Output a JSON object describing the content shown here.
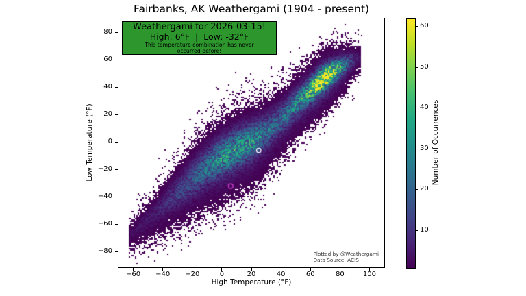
{
  "title": "Fairbanks, AK Weathergami (1904 - present)",
  "annotation_box": {
    "line1": "Weathergami for 2026-03-15!",
    "line2": "High: 6°F  |  Low: -32°F",
    "line3": "This temperature combination has never",
    "line4": "occurred before!",
    "bg_color": "#2d962d",
    "border_color": "#000000",
    "text_color": "#000000"
  },
  "attribution": {
    "line1": "Plotted by @Weathergami",
    "line2": "Data Source: ACIS"
  },
  "colors": {
    "figure_bg": "#ffffff",
    "frame": "#000000",
    "text": "#000000"
  },
  "chart_data": {
    "type": "heatmap",
    "subtype": "2d-histogram",
    "title": "Fairbanks, AK Weathergami (1904 - present)",
    "xlabel": "High Temperature (°F)",
    "ylabel": "Low Temperature (°F)",
    "xlim": [
      -70,
      110
    ],
    "ylim": [
      -91,
      90
    ],
    "xticks": [
      -60,
      -40,
      -20,
      0,
      20,
      40,
      60,
      80,
      100
    ],
    "yticks": [
      -80,
      -60,
      -40,
      -20,
      0,
      20,
      40,
      60,
      80
    ],
    "bin_size_deg": 1,
    "grid": false,
    "colorbar": {
      "label": "Number of Occurrences",
      "vmin": 1,
      "vmax": 62,
      "ticks": [
        10,
        20,
        30,
        40,
        50,
        60
      ],
      "colormap": "viridis",
      "stops": [
        [
          0,
          "#440154"
        ],
        [
          0.1,
          "#482475"
        ],
        [
          0.2,
          "#414487"
        ],
        [
          0.3,
          "#355f8d"
        ],
        [
          0.4,
          "#2a788e"
        ],
        [
          0.5,
          "#21918c"
        ],
        [
          0.6,
          "#22a884"
        ],
        [
          0.7,
          "#44bf70"
        ],
        [
          0.8,
          "#7ad151"
        ],
        [
          0.9,
          "#bddf26"
        ],
        [
          1,
          "#fde725"
        ]
      ]
    },
    "markers": [
      {
        "label": "highlighted-day",
        "x": 25,
        "y": -6,
        "color": "#ffffff",
        "radius": 3.2
      },
      {
        "label": "new-combination-point",
        "x": 6,
        "y": -32,
        "color": "#cc3fcc",
        "radius": 3.4
      }
    ],
    "density_model": {
      "comment": "diagonal high/low band, count density approximated by ridge+halo gaussians perpendicular to center line",
      "seed": 11,
      "h_range": [
        -63,
        94
      ],
      "center_line": [
        [
          -63,
          -67
        ],
        [
          -50,
          -55
        ],
        [
          -40,
          -46
        ],
        [
          -30,
          -36
        ],
        [
          -20,
          -26
        ],
        [
          -10,
          -17
        ],
        [
          0,
          -10
        ],
        [
          10,
          -4
        ],
        [
          20,
          1
        ],
        [
          30,
          8
        ],
        [
          40,
          17
        ],
        [
          50,
          28
        ],
        [
          60,
          38
        ],
        [
          68,
          46
        ],
        [
          75,
          51
        ],
        [
          85,
          58
        ],
        [
          94,
          63
        ]
      ],
      "amplitude": [
        [
          -63,
          1.5
        ],
        [
          -52,
          3
        ],
        [
          -42,
          5
        ],
        [
          -32,
          8
        ],
        [
          -22,
          13
        ],
        [
          -12,
          18
        ],
        [
          -2,
          24
        ],
        [
          8,
          28
        ],
        [
          18,
          26
        ],
        [
          28,
          20
        ],
        [
          38,
          16
        ],
        [
          48,
          22
        ],
        [
          56,
          30
        ],
        [
          62,
          42
        ],
        [
          66,
          52
        ],
        [
          70,
          56
        ],
        [
          74,
          48
        ],
        [
          78,
          36
        ],
        [
          82,
          25
        ],
        [
          86,
          13
        ],
        [
          90,
          6
        ],
        [
          94,
          2
        ]
      ],
      "sigma": [
        [
          -63,
          3
        ],
        [
          -45,
          5
        ],
        [
          -30,
          7
        ],
        [
          -15,
          8
        ],
        [
          0,
          8.5
        ],
        [
          20,
          8
        ],
        [
          35,
          7
        ],
        [
          50,
          6
        ],
        [
          62,
          5.5
        ],
        [
          75,
          5
        ],
        [
          85,
          4
        ],
        [
          94,
          3
        ]
      ],
      "halo_scale": 0.12,
      "halo_base": 0.8,
      "halo_sigma_mult": 1.6,
      "halo_sigma_add": 3,
      "halo_below": 1.6,
      "halo_above": 0.55,
      "outliers": [
        [
          94,
          77,
          2
        ],
        [
          -8,
          25,
          1
        ]
      ]
    }
  }
}
